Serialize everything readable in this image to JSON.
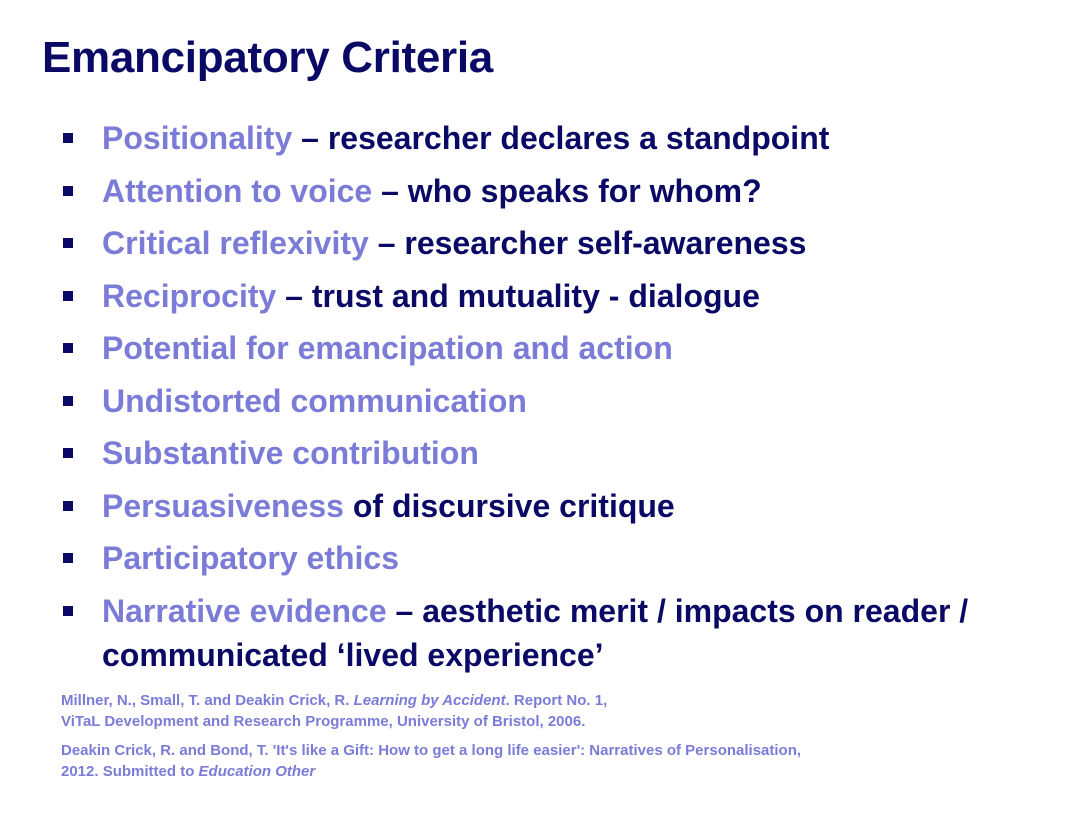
{
  "slide": {
    "title": "Emancipatory Criteria",
    "bullets": [
      {
        "term": "Positionality",
        "rest": " – researcher declares a standpoint"
      },
      {
        "term": "Attention to voice",
        "rest": " – who speaks for whom?"
      },
      {
        "term": "Critical reflexivity",
        "rest": " – researcher self-awareness"
      },
      {
        "term": "Reciprocity",
        "rest": " – trust and mutuality - dialogue"
      },
      {
        "term": "Potential for emancipation and action",
        "rest": ""
      },
      {
        "term": "Undistorted communication",
        "rest": ""
      },
      {
        "term": "Substantive contribution",
        "rest": ""
      },
      {
        "term": "Persuasiveness",
        "rest": " of discursive critique"
      },
      {
        "term": "Participatory ethics",
        "rest": ""
      },
      {
        "term": "Narrative evidence",
        "rest": " – aesthetic merit / impacts on reader / communicated ‘lived experience’"
      }
    ],
    "references": [
      {
        "before": "Millner, N., Small, T. and Deakin Crick, R. ",
        "italic": "Learning by Accident",
        "after": ". Report No. 1,",
        "line2": "ViTaL Development and Research Programme, University of Bristol, 2006."
      },
      {
        "before": "Deakin Crick, R. and Bond, T. 'It's like a Gift: How to get a long life easier': Narratives of Personalisation,",
        "line2_before": "2012. Submitted to ",
        "line2_italic": "Education Other"
      }
    ]
  },
  "colors": {
    "title": "#0a0a66",
    "highlight": "#7b7bd8",
    "body_text": "#0a0a66",
    "bullet": "#0a0a66"
  }
}
